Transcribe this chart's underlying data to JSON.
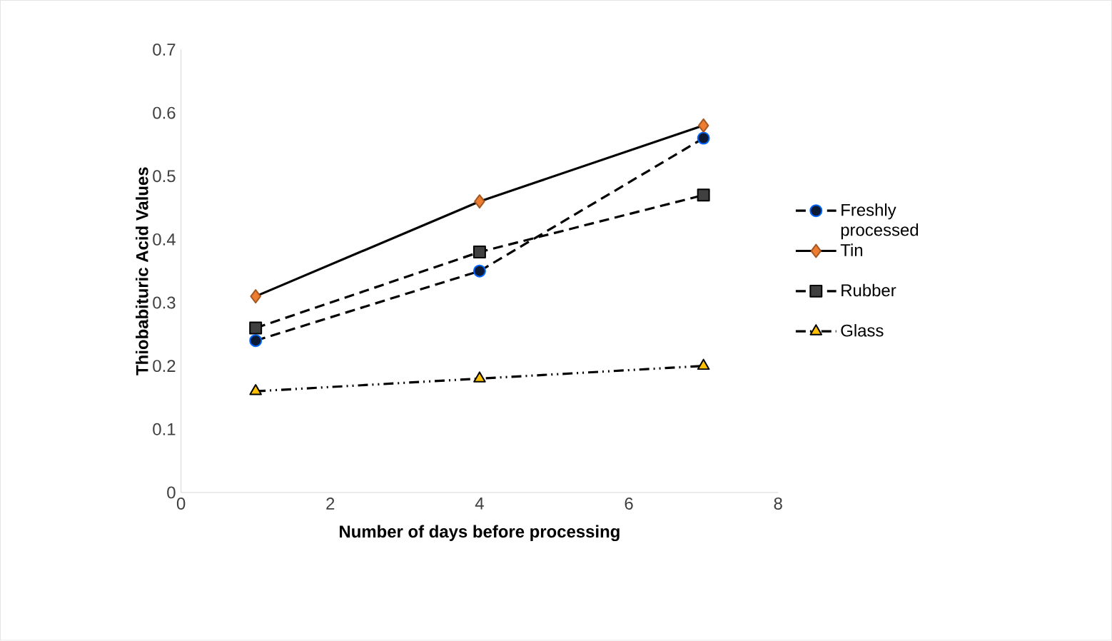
{
  "chart_data": {
    "type": "line",
    "xlabel": "Number of days before processing",
    "ylabel": "Thiobabituric Acid Values",
    "x": [
      1,
      4,
      7
    ],
    "xlim": [
      0,
      8
    ],
    "xticks": [
      0,
      2,
      4,
      6,
      8
    ],
    "ylim": [
      0,
      0.7
    ],
    "yticks": [
      0,
      0.1,
      0.2,
      0.3,
      0.4,
      0.5,
      0.6,
      0.7
    ],
    "grid": false,
    "legend": "right",
    "series": [
      {
        "name": "Freshly processed",
        "color": "#0d1a33",
        "values": [
          0.24,
          0.35,
          0.56
        ],
        "marker": "circle",
        "line_style": "dashed"
      },
      {
        "name": "Tin",
        "color": "#ed7d31",
        "values": [
          0.31,
          0.46,
          0.58
        ],
        "marker": "diamond",
        "line_style": "solid"
      },
      {
        "name": "Rubber",
        "color": "#404040",
        "values": [
          0.26,
          0.38,
          0.47
        ],
        "marker": "square",
        "line_style": "dashed"
      },
      {
        "name": "Glass",
        "color": "#ffc000",
        "values": [
          0.16,
          0.18,
          0.2
        ],
        "marker": "triangle",
        "line_style": "dotted"
      }
    ]
  }
}
